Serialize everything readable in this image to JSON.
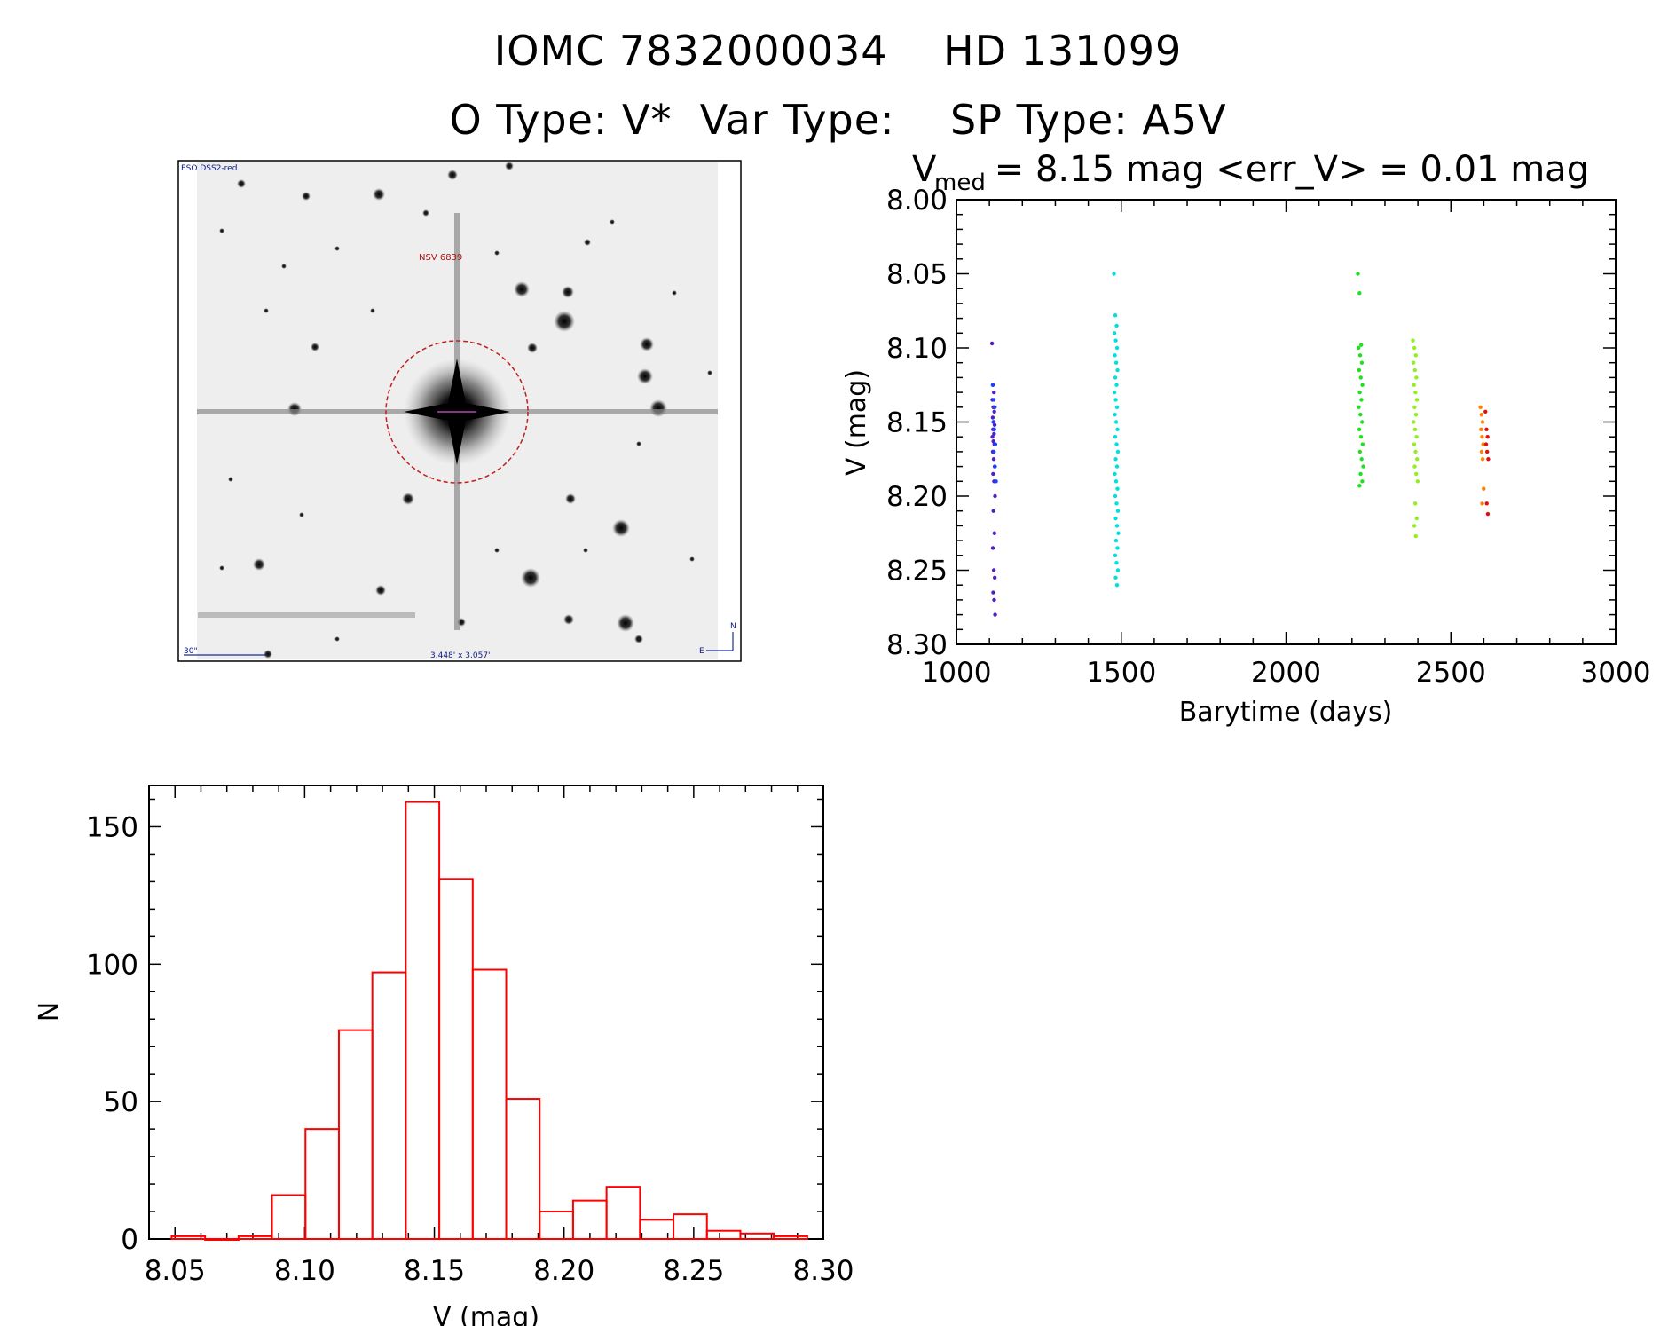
{
  "header": {
    "line1": "IOMC 7832000034    HD 131099",
    "line2": "O Type: V*  Var Type:    SP Type: A5V"
  },
  "image_panel": {
    "survey_label": "ESO DSS2-red",
    "object_label": "NSV 6839",
    "scale_label": "30\"",
    "size_label": "3.448' x 3.057'",
    "compass_north": "N",
    "compass_east": "E"
  },
  "chart_data": [
    {
      "type": "scatter",
      "title_main": "V",
      "title_sub": "med",
      "title_rest": " = 8.15 mag <err_V> = 0.01 mag",
      "xlabel": "Barytime (days)",
      "ylabel": "V (mag)",
      "xlim": [
        1000,
        3000
      ],
      "ylim": [
        8.3,
        8.0
      ],
      "y_inverted": true,
      "xticks": [
        1000,
        1500,
        2000,
        2500,
        3000
      ],
      "yticks": [
        "8.00",
        "8.05",
        "8.10",
        "8.15",
        "8.20",
        "8.25",
        "8.30"
      ],
      "series": [
        {
          "color": "#5020c0",
          "x_range": [
            1108,
            1118
          ],
          "y_values": [
            8.097,
            8.125,
            8.13,
            8.135,
            8.14,
            8.143,
            8.147,
            8.15,
            8.152,
            8.155,
            8.158,
            8.16,
            8.163,
            8.165,
            8.17,
            8.175,
            8.18,
            8.185,
            8.19,
            8.2,
            8.21,
            8.225,
            8.235,
            8.25,
            8.255,
            8.265,
            8.27,
            8.28
          ]
        },
        {
          "color": "#2040ff",
          "x_range": [
            1110,
            1120
          ],
          "y_values": [
            8.125,
            8.135,
            8.14,
            8.15,
            8.155,
            8.165,
            8.17,
            8.18,
            8.19
          ]
        },
        {
          "color": "#00e0e0",
          "x_range": [
            1478,
            1492
          ],
          "y_values": [
            8.05,
            8.078,
            8.085,
            8.09,
            8.095,
            8.1,
            8.105,
            8.11,
            8.115,
            8.12,
            8.125,
            8.13,
            8.135,
            8.14,
            8.145,
            8.15,
            8.155,
            8.16,
            8.165,
            8.17,
            8.175,
            8.18,
            8.185,
            8.19,
            8.195,
            8.2,
            8.205,
            8.21,
            8.215,
            8.22,
            8.225,
            8.23,
            8.235,
            8.24,
            8.245,
            8.25,
            8.255,
            8.26
          ]
        },
        {
          "color": "#20e020",
          "x_range": [
            2218,
            2235
          ],
          "y_values": [
            8.05,
            8.063,
            8.098,
            8.1,
            8.105,
            8.11,
            8.115,
            8.12,
            8.125,
            8.13,
            8.135,
            8.14,
            8.145,
            8.15,
            8.155,
            8.16,
            8.165,
            8.17,
            8.175,
            8.18,
            8.185,
            8.19,
            8.193
          ]
        },
        {
          "color": "#90f020",
          "x_range": [
            2385,
            2400
          ],
          "y_values": [
            8.095,
            8.1,
            8.105,
            8.11,
            8.115,
            8.12,
            8.125,
            8.13,
            8.135,
            8.14,
            8.145,
            8.15,
            8.155,
            8.16,
            8.165,
            8.17,
            8.175,
            8.18,
            8.185,
            8.19,
            8.205,
            8.215,
            8.22,
            8.227
          ]
        },
        {
          "color": "#ff8000",
          "x_range": [
            2590,
            2600
          ],
          "y_values": [
            8.14,
            8.145,
            8.15,
            8.155,
            8.16,
            8.165,
            8.17,
            8.175,
            8.195,
            8.205
          ]
        },
        {
          "color": "#e01010",
          "x_range": [
            2605,
            2615
          ],
          "y_values": [
            8.143,
            8.155,
            8.16,
            8.165,
            8.17,
            8.175,
            8.205,
            8.212
          ]
        }
      ]
    },
    {
      "type": "bar",
      "xlabel": "V (mag)",
      "ylabel": "N",
      "xlim": [
        8.04,
        8.3
      ],
      "ylim": [
        0,
        165
      ],
      "xticks": [
        "8.05",
        "8.10",
        "8.15",
        "8.20",
        "8.25",
        "8.30"
      ],
      "yticks": [
        "0",
        "50",
        "100",
        "150"
      ],
      "bar_color": "#ff0000",
      "bin_width": 0.0129,
      "bin_start": 8.0487,
      "values": [
        1,
        0,
        1,
        16,
        40,
        76,
        97,
        159,
        131,
        98,
        51,
        10,
        14,
        19,
        7,
        9,
        3,
        2,
        1
      ]
    }
  ]
}
